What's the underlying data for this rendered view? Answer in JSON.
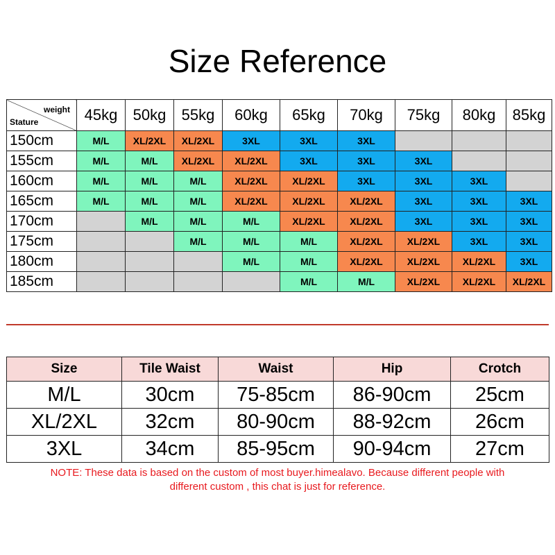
{
  "title": "Size Reference",
  "grid": {
    "corner_top": "weight",
    "corner_bottom": "Stature",
    "weights": [
      "45kg",
      "50kg",
      "55kg",
      "60kg",
      "65kg",
      "70kg",
      "75kg",
      "80kg",
      "85kg"
    ],
    "rows": [
      {
        "stature": "150cm",
        "cells": [
          "M/L",
          "XL/2XL",
          "XL/2XL",
          "3XL",
          "3XL",
          "3XL",
          "",
          "",
          ""
        ]
      },
      {
        "stature": "155cm",
        "cells": [
          "M/L",
          "M/L",
          "XL/2XL",
          "XL/2XL",
          "3XL",
          "3XL",
          "3XL",
          "",
          ""
        ]
      },
      {
        "stature": "160cm",
        "cells": [
          "M/L",
          "M/L",
          "M/L",
          "XL/2XL",
          "XL/2XL",
          "3XL",
          "3XL",
          "3XL",
          ""
        ]
      },
      {
        "stature": "165cm",
        "cells": [
          "M/L",
          "M/L",
          "M/L",
          "XL/2XL",
          "XL/2XL",
          "XL/2XL",
          "3XL",
          "3XL",
          "3XL"
        ]
      },
      {
        "stature": "170cm",
        "cells": [
          "",
          "M/L",
          "M/L",
          "M/L",
          "XL/2XL",
          "XL/2XL",
          "3XL",
          "3XL",
          "3XL"
        ]
      },
      {
        "stature": "175cm",
        "cells": [
          "",
          "",
          "M/L",
          "M/L",
          "M/L",
          "XL/2XL",
          "XL/2XL",
          "3XL",
          "3XL"
        ]
      },
      {
        "stature": "180cm",
        "cells": [
          "",
          "",
          "",
          "M/L",
          "M/L",
          "XL/2XL",
          "XL/2XL",
          "XL/2XL",
          "3XL"
        ]
      },
      {
        "stature": "185cm",
        "cells": [
          "",
          "",
          "",
          "",
          "M/L",
          "M/L",
          "XL/2XL",
          "XL/2XL",
          "XL/2XL"
        ]
      }
    ]
  },
  "size_colors": {
    "M/L": "#7ff5bd",
    "XL/2XL": "#f7884e",
    "3XL": "#13aaef",
    "empty": "#d3d3d3"
  },
  "measurements": {
    "headers": [
      "Size",
      "Tile Waist",
      "Waist",
      "Hip",
      "Crotch"
    ],
    "rows": [
      [
        "M/L",
        "30cm",
        "75-85cm",
        "86-90cm",
        "25cm"
      ],
      [
        "XL/2XL",
        "32cm",
        "80-90cm",
        "88-92cm",
        "26cm"
      ],
      [
        "3XL",
        "34cm",
        "85-95cm",
        "90-94cm",
        "27cm"
      ]
    ]
  },
  "note_line1": "NOTE: These data is based on the custom of most buyer.himealavo. Because different people with",
  "note_line2": "different custom , this chat is just for reference."
}
